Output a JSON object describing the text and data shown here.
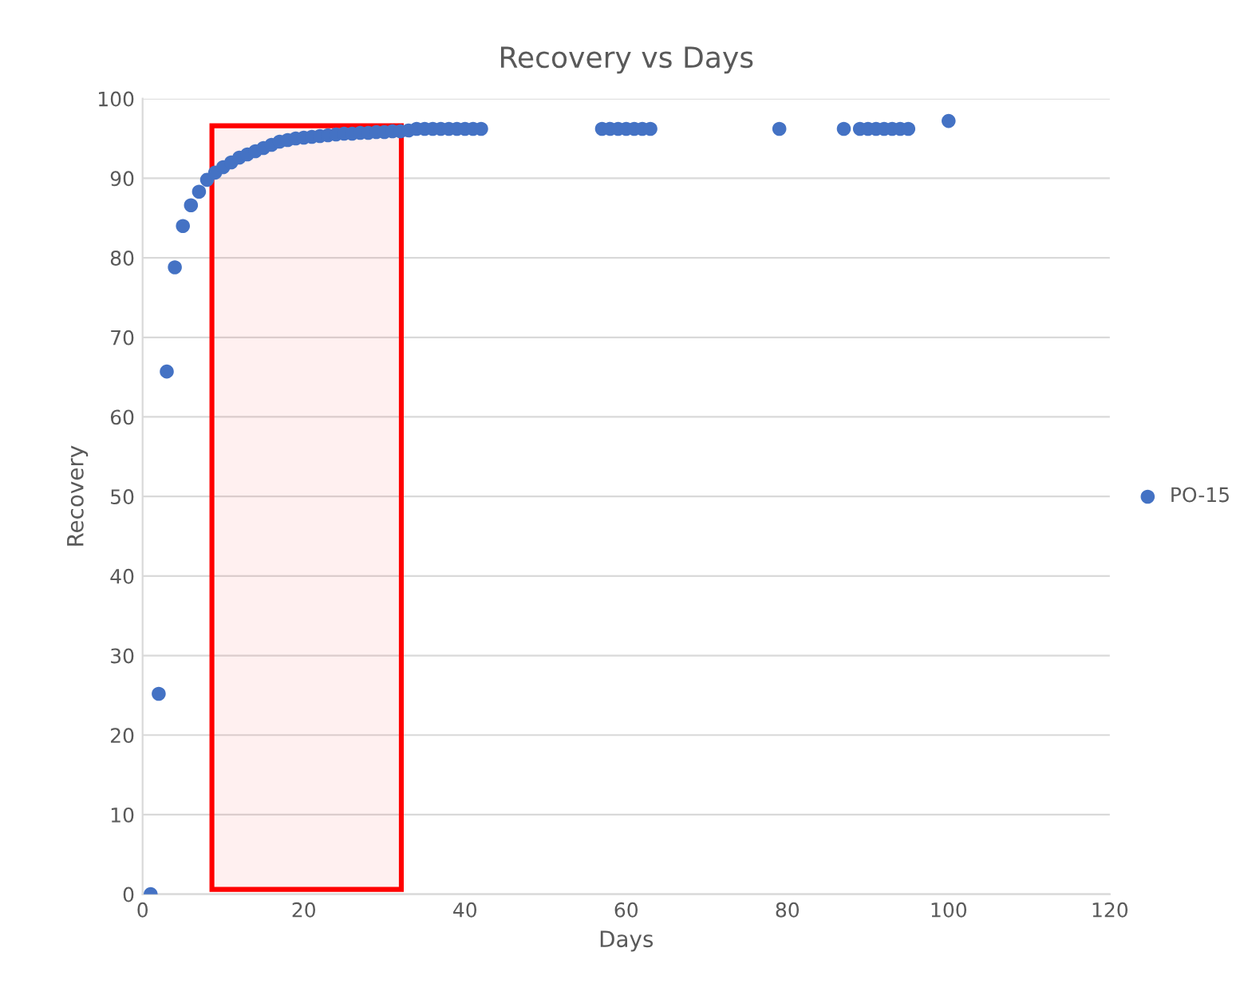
{
  "chart_data": {
    "type": "scatter",
    "title": "Recovery vs Days",
    "xlabel": "Days",
    "ylabel": "Recovery",
    "series": [
      {
        "name": "PO-15",
        "color": "#4472c4",
        "x": [
          1,
          2,
          3,
          4,
          5,
          6,
          7,
          8,
          9,
          10,
          11,
          12,
          13,
          14,
          15,
          16,
          17,
          18,
          19,
          20,
          21,
          22,
          23,
          24,
          25,
          26,
          27,
          28,
          29,
          30,
          31,
          32,
          33,
          34,
          35,
          36,
          37,
          38,
          39,
          40,
          41,
          42,
          57,
          58,
          59,
          60,
          61,
          62,
          63,
          79,
          87,
          89,
          90,
          91,
          92,
          93,
          94,
          95,
          100
        ],
        "values": [
          0,
          25.2,
          65.7,
          78.8,
          84,
          86.6,
          88.3,
          89.8,
          90.7,
          91.4,
          92,
          92.6,
          93,
          93.4,
          93.8,
          94.2,
          94.6,
          94.8,
          95,
          95.1,
          95.2,
          95.3,
          95.4,
          95.5,
          95.6,
          95.6,
          95.7,
          95.7,
          95.8,
          95.8,
          95.9,
          95.9,
          96,
          96.2,
          96.2,
          96.2,
          96.2,
          96.2,
          96.2,
          96.2,
          96.2,
          96.2,
          96.2,
          96.2,
          96.2,
          96.2,
          96.2,
          96.2,
          96.2,
          96.2,
          96.2,
          96.2,
          96.2,
          96.2,
          96.2,
          96.2,
          96.2,
          96.2,
          97.2
        ]
      }
    ],
    "xlim": [
      0,
      120
    ],
    "xticks": [
      0,
      20,
      40,
      60,
      80,
      100,
      120
    ],
    "ylim": [
      0,
      100
    ],
    "yticks": [
      0,
      10,
      20,
      30,
      40,
      50,
      60,
      70,
      80,
      90,
      100
    ],
    "grid": "y",
    "legend": "right",
    "marker": "circle",
    "bands": [
      {
        "axis": "x",
        "from": 8.6,
        "to": 32.1,
        "color": "#ff0000"
      }
    ]
  }
}
